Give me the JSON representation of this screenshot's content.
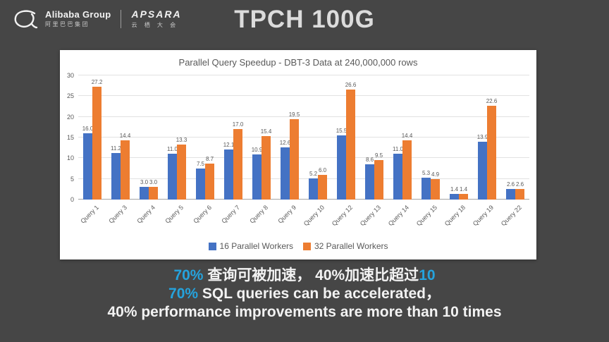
{
  "colors": {
    "background": "#464646",
    "panel": "#ffffff",
    "accent": "#25a3dd",
    "series1": "#4472c4",
    "series2": "#ed7d31",
    "axis_text": "#595959"
  },
  "header": {
    "title": "TPCH 100G",
    "logo": {
      "alibaba_name": "Alibaba Group",
      "alibaba_cn": "阿里巴巴集团",
      "apsara_name": "APSARA",
      "apsara_cn": "云 栖 大 会"
    }
  },
  "chart_data": {
    "type": "bar",
    "title": "Parallel Query Speedup - DBT-3 Data at 240,000,000 rows",
    "categories": [
      "Query 1",
      "Query 3",
      "Query 4",
      "Query 5",
      "Query 6",
      "Query 7",
      "Query 8",
      "Query 9",
      "Query 10",
      "Query 12",
      "Query 13",
      "Query 14",
      "Query 15",
      "Query 18",
      "Query 19",
      "Query 22"
    ],
    "series": [
      {
        "name": "16 Parallel Workers",
        "color": "#4472c4",
        "values": [
          16.0,
          11.2,
          3.0,
          11.0,
          7.5,
          12.1,
          10.9,
          12.6,
          5.2,
          15.5,
          8.6,
          11.0,
          5.3,
          1.4,
          13.9,
          2.6
        ]
      },
      {
        "name": "32 Parallel Workers",
        "color": "#ed7d31",
        "values": [
          27.2,
          14.4,
          3.0,
          13.3,
          8.7,
          17.0,
          15.4,
          19.5,
          6.0,
          26.6,
          9.5,
          14.4,
          4.9,
          1.4,
          22.6,
          2.6
        ]
      }
    ],
    "ylim": [
      0,
      30
    ],
    "ytick_step": 5,
    "grid": true,
    "legend_position": "bottom",
    "xlabel": "",
    "ylabel": ""
  },
  "caption": {
    "line1": [
      {
        "text": "70%",
        "accent": true
      },
      {
        "text": " 查询可被加速， 40%加速比超过",
        "accent": false
      },
      {
        "text": "10",
        "accent": true
      }
    ],
    "line2": [
      {
        "text": "70%",
        "accent": true
      },
      {
        "text": " SQL queries can be accelerated，",
        "accent": false
      }
    ],
    "line3": [
      {
        "text": "40% performance improvements are more than 10 times",
        "accent": false
      }
    ]
  }
}
